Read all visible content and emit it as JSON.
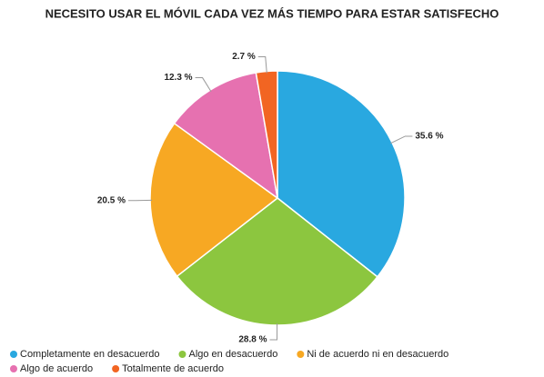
{
  "chart_data": {
    "type": "pie",
    "title": "NECESITO USAR EL MÓVIL CADA VEZ MÁS TIEMPO PARA ESTAR SATISFECHO",
    "categories": [
      "Completamente en desacuerdo",
      "Algo en desacuerdo",
      "Ni de acuerdo ni en desacuerdo",
      "Algo de acuerdo",
      "Totalmente de acuerdo"
    ],
    "values": [
      35.6,
      28.8,
      20.5,
      12.3,
      2.7
    ],
    "value_labels": [
      "35.6 %",
      "28.8 %",
      "20.5 %",
      "12.3 %",
      "2.7 %"
    ],
    "colors": [
      "#29a8e0",
      "#8cc63f",
      "#f7a823",
      "#e671b0",
      "#f26522"
    ],
    "legend": "bottom"
  }
}
